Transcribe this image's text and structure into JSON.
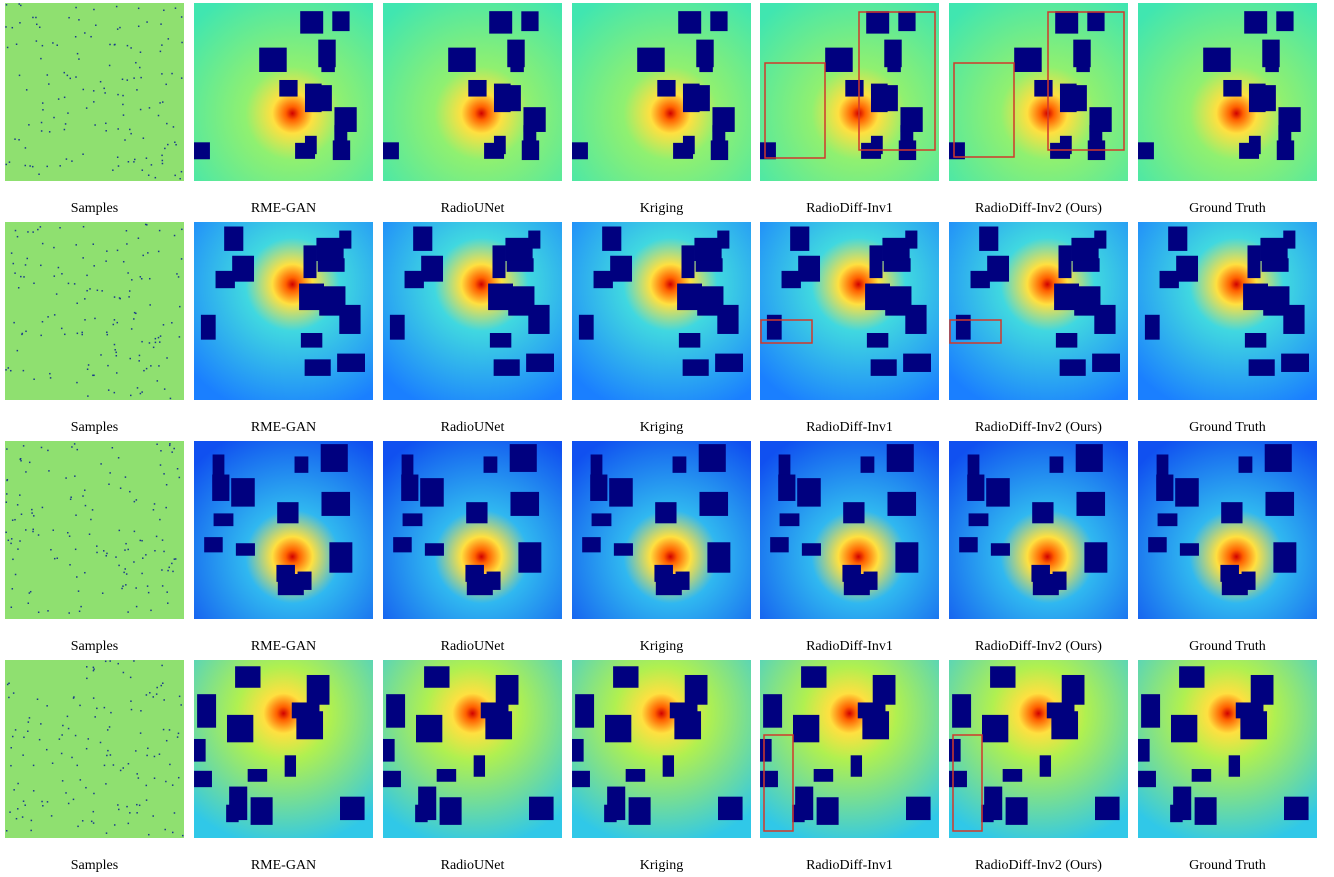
{
  "figure": {
    "rows": [
      {
        "captions": [
          "Samples",
          "RME-GAN",
          "RadioUNet",
          "Kriging",
          "RadioDiff-Inv1",
          "RadioDiff-Inv2 (Ours)",
          "Ground Truth"
        ]
      },
      {
        "captions": [
          "Samples",
          "RME-GAN",
          "RadioUNet",
          "Kriging",
          "RadioDiff-Inv1",
          "RadioDiff-Inv2 (Ours)",
          "Ground Truth"
        ]
      },
      {
        "captions": [
          "Samples",
          "RME-GAN",
          "RadioUNet",
          "Kriging",
          "RadioDiff-Inv1",
          "RadioDiff-Inv2 (Ours)",
          "Ground Truth"
        ]
      },
      {
        "captions": [
          "Samples",
          "RME-GAN",
          "RadioUNet",
          "Kriging",
          "RadioDiff-Inv1",
          "RadioDiff-Inv2 (Ours)",
          "Ground Truth"
        ]
      }
    ]
  }
}
